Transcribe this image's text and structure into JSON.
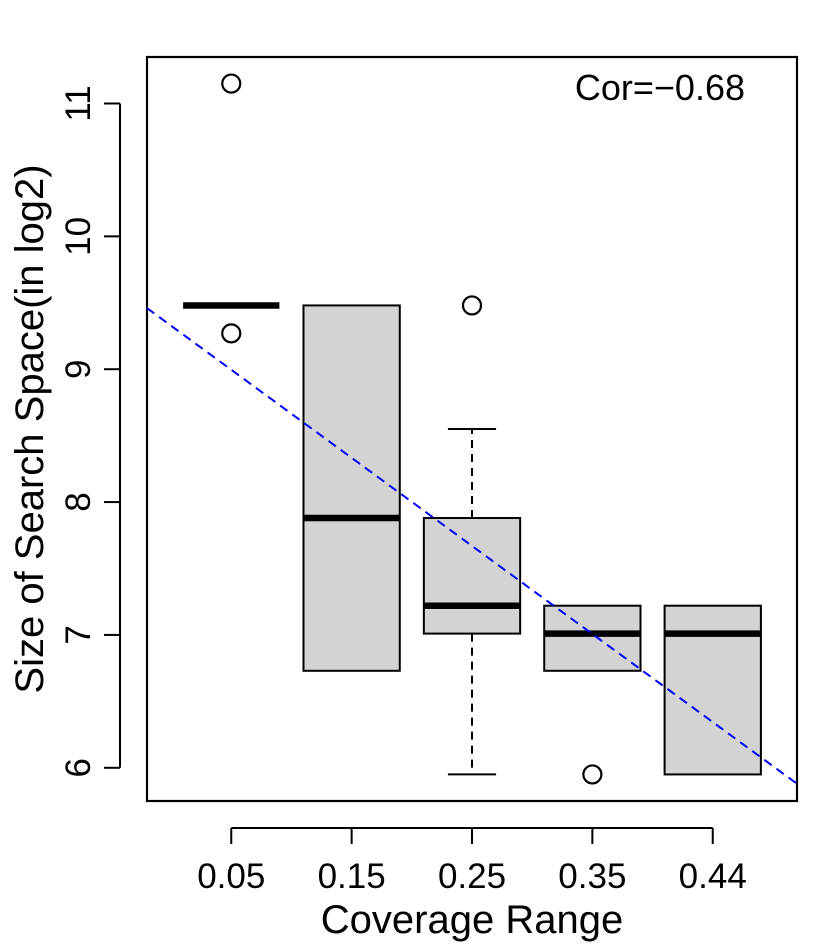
{
  "chart_data": {
    "type": "box",
    "xlabel": "Coverage Range",
    "ylabel": "Size of Search Space(in log2)",
    "categories": [
      "0.05",
      "0.15",
      "0.25",
      "0.35",
      "0.44"
    ],
    "ylim": [
      5.75,
      11.35
    ],
    "yticks": [
      6,
      7,
      8,
      9,
      10,
      11
    ],
    "yticklabels": [
      "6",
      "7",
      "8",
      "9",
      "10",
      "11"
    ],
    "boxes": [
      {
        "category": "0.05",
        "whisker_low": 9.48,
        "q1": 9.48,
        "median": 9.48,
        "q3": 9.48,
        "whisker_high": 9.48,
        "outliers": [
          11.15,
          9.27
        ]
      },
      {
        "category": "0.15",
        "whisker_low": 6.73,
        "q1": 6.73,
        "median": 7.88,
        "q3": 9.48,
        "whisker_high": 9.48,
        "outliers": []
      },
      {
        "category": "0.25",
        "whisker_low": 5.95,
        "q1": 7.01,
        "median": 7.22,
        "q3": 7.88,
        "whisker_high": 8.55,
        "outliers": [
          9.48
        ]
      },
      {
        "category": "0.35",
        "whisker_low": 6.73,
        "q1": 6.73,
        "median": 7.01,
        "q3": 7.22,
        "whisker_high": 7.22,
        "outliers": [
          5.95
        ]
      },
      {
        "category": "0.44",
        "whisker_low": 5.95,
        "q1": 5.95,
        "median": 7.01,
        "q3": 7.22,
        "whisker_high": 7.22,
        "outliers": []
      }
    ],
    "trend_line": {
      "style": "dashed",
      "color": "#0000ff",
      "start": {
        "x": 0.3,
        "y": 9.46
      },
      "end": {
        "x": 5.7,
        "y": 5.88
      }
    },
    "annotation": "Cor=−0.68",
    "colors": {
      "box_fill": "#d3d3d3",
      "stroke": "#000000",
      "trend": "#0000ff"
    }
  }
}
